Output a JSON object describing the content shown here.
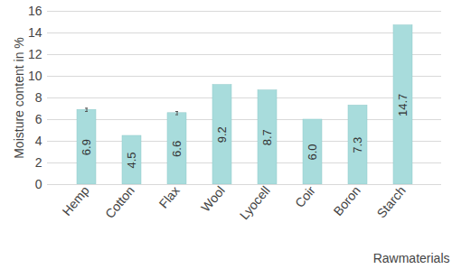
{
  "chart_data": {
    "type": "bar",
    "x_label": "Rawmaterials",
    "y_label": "Moisture content in %",
    "categories": [
      "Hemp",
      "Cotton",
      "Flax",
      "Wool",
      "Lyocell",
      "Coir",
      "Boron",
      "Starch"
    ],
    "values": [
      6.9,
      4.5,
      6.6,
      9.2,
      8.7,
      6.0,
      7.3,
      14.7
    ],
    "value_labels": [
      "6.9",
      "4.5",
      "6.6",
      "9.2",
      "8.7",
      "6.0",
      "7.3",
      "14.7"
    ],
    "errors": [
      0.15,
      null,
      0.15,
      null,
      null,
      null,
      null,
      null
    ],
    "color": "#a8dcdc",
    "ylim": [
      0,
      16
    ],
    "yticks": [
      0,
      2,
      4,
      6,
      8,
      10,
      12,
      14,
      16
    ],
    "grid": true,
    "data_labels": true
  }
}
